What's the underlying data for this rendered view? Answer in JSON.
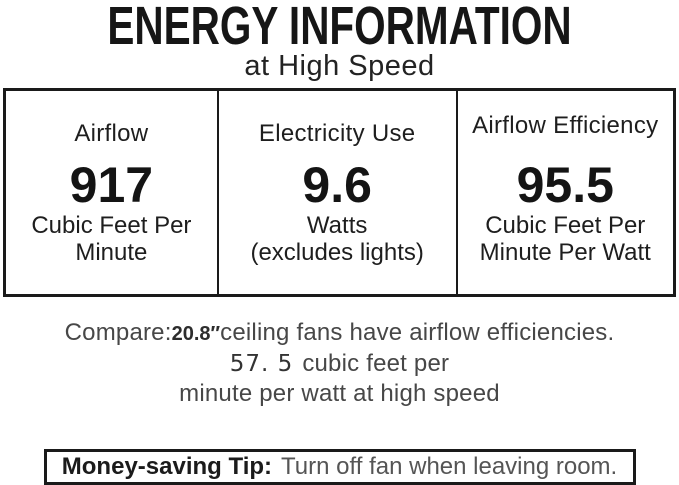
{
  "title": "ENERGY INFORMATION",
  "subtitle": "at High Speed",
  "energy_table": {
    "columns": [
      {
        "header": "Airflow",
        "value": "917",
        "unit_line1": "Cubic Feet Per",
        "unit_line2": "Minute"
      },
      {
        "header": "Electricity Use",
        "value": "9.6",
        "unit_line1": "Watts",
        "unit_line2": "(excludes lights)"
      },
      {
        "header": "Airflow Efficiency",
        "value": "95.5",
        "unit_line1": "Cubic Feet Per",
        "unit_line2": "Minute Per Watt"
      }
    ]
  },
  "compare": {
    "label": "Compare:",
    "fan_size": "20.8",
    "inch_mark": "″",
    "line1_rest": "ceiling fans have airflow efficiencies.",
    "efficiency_value": "57. 5",
    "line2_rest": "cubic feet per",
    "line3": "minute per watt at high speed"
  },
  "tip": {
    "label": "Money-saving Tip:",
    "text": "Turn off fan when leaving room."
  },
  "colors": {
    "text": "#1b1b1b",
    "secondary_text": "#474747",
    "border": "#1a1a1a",
    "background": "#ffffff"
  }
}
